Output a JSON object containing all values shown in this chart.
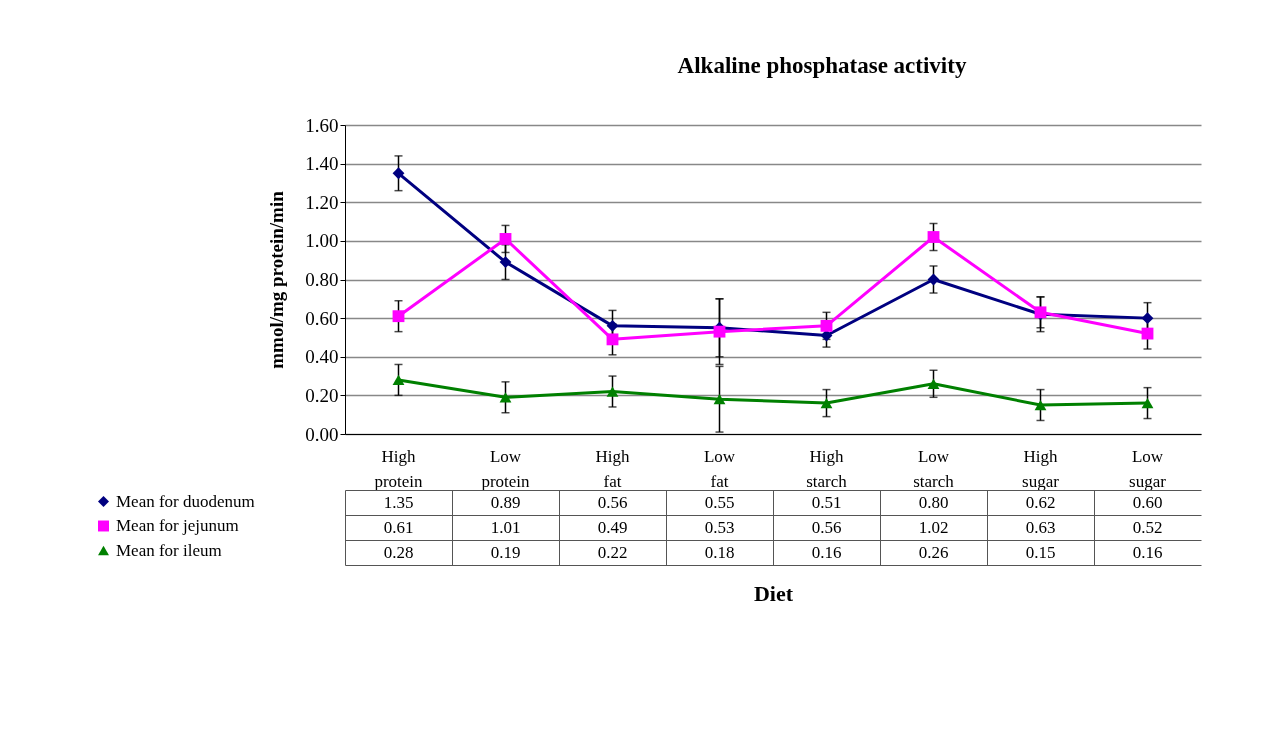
{
  "chart_data": {
    "type": "line",
    "title": "Alkaline phosphatase activity",
    "xlabel": "Diet",
    "ylabel": "mmol/mg protein/min",
    "categories": [
      "High protein",
      "Low protein",
      "High fat",
      "Low fat",
      "High starch",
      "Low starch",
      "High sugar",
      "Low sugar"
    ],
    "series": [
      {
        "name": "Mean for duodenum",
        "color": "#000080",
        "marker": "diamond",
        "values": [
          1.35,
          0.89,
          0.56,
          0.55,
          0.51,
          0.8,
          0.62,
          0.6
        ],
        "value_labels": [
          "1.35",
          "0.89",
          "0.56",
          "0.55",
          "0.51",
          "0.80",
          "0.62",
          "0.60"
        ],
        "errors": [
          0.09,
          0.09,
          0.08,
          0.15,
          0.06,
          0.07,
          0.09,
          0.08
        ]
      },
      {
        "name": "Mean for jejunum",
        "color": "#ff00ff",
        "marker": "square",
        "values": [
          0.61,
          1.01,
          0.49,
          0.53,
          0.56,
          1.02,
          0.63,
          0.52
        ],
        "value_labels": [
          "0.61",
          "1.01",
          "0.49",
          "0.53",
          "0.56",
          "1.02",
          "0.63",
          "0.52"
        ],
        "errors": [
          0.08,
          0.07,
          0.08,
          0.17,
          0.07,
          0.07,
          0.08,
          0.08
        ]
      },
      {
        "name": "Mean for ileum",
        "color": "#008000",
        "marker": "triangle",
        "values": [
          0.28,
          0.19,
          0.22,
          0.18,
          0.16,
          0.26,
          0.15,
          0.16
        ],
        "value_labels": [
          "0.28",
          "0.19",
          "0.22",
          "0.18",
          "0.16",
          "0.26",
          "0.15",
          "0.16"
        ],
        "errors": [
          0.08,
          0.08,
          0.08,
          0.17,
          0.07,
          0.07,
          0.08,
          0.08
        ]
      }
    ],
    "ylim": [
      0,
      1.6
    ],
    "yticks": [
      {
        "value": 0,
        "label": "0.00"
      },
      {
        "value": 0.2,
        "label": "0.20"
      },
      {
        "value": 0.4,
        "label": "0.40"
      },
      {
        "value": 0.6,
        "label": "0.60"
      },
      {
        "value": 0.8,
        "label": "0.80"
      },
      {
        "value": 1,
        "label": "1.00"
      },
      {
        "value": 1.2,
        "label": "1.20"
      },
      {
        "value": 1.4,
        "label": "1.40"
      },
      {
        "value": 1.6,
        "label": "1.60"
      }
    ],
    "grid": "y",
    "legend": "bottom left",
    "line_style": "solid"
  }
}
